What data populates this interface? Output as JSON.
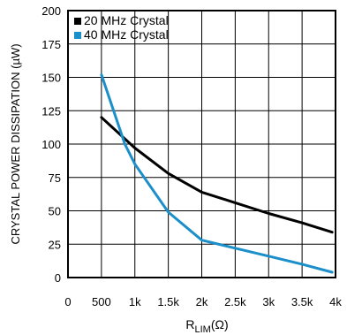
{
  "chart_data": {
    "type": "line",
    "title": "",
    "ylabel": "CRYSTAL POWER DISSIPATION (µW)",
    "xlabel_main": "R",
    "xlabel_sub": "LIM",
    "xlabel_unit": "(Ω)",
    "x_ticks": [
      {
        "value": 0,
        "label": "0"
      },
      {
        "value": 500,
        "label": "500"
      },
      {
        "value": 1000,
        "label": "1k"
      },
      {
        "value": 1500,
        "label": "1.5k"
      },
      {
        "value": 2000,
        "label": "2k"
      },
      {
        "value": 2500,
        "label": "2.5k"
      },
      {
        "value": 3000,
        "label": "3k"
      },
      {
        "value": 3500,
        "label": "3.5k"
      },
      {
        "value": 4000,
        "label": "4k"
      }
    ],
    "y_ticks": [
      {
        "value": 0,
        "label": "0"
      },
      {
        "value": 25,
        "label": "25"
      },
      {
        "value": 50,
        "label": "50"
      },
      {
        "value": 75,
        "label": "75"
      },
      {
        "value": 100,
        "label": "100"
      },
      {
        "value": 125,
        "label": "125"
      },
      {
        "value": 150,
        "label": "150"
      },
      {
        "value": 175,
        "label": "175"
      },
      {
        "value": 200,
        "label": "200"
      }
    ],
    "xlim": [
      0,
      4000
    ],
    "ylim": [
      0,
      200
    ],
    "grid": true,
    "legend_position": "top-left",
    "series": [
      {
        "name": "20 MHz Crystal",
        "color": "#000000",
        "x": [
          500,
          1000,
          1500,
          2000,
          2500,
          3000,
          3500,
          3950
        ],
        "y": [
          120,
          97,
          78,
          64,
          56,
          48,
          41,
          34
        ]
      },
      {
        "name": "40 MHz Crystal",
        "color": "#1a8fc9",
        "x": [
          500,
          850,
          1000,
          1500,
          2000,
          2500,
          3000,
          3500,
          3950
        ],
        "y": [
          152,
          100,
          85,
          49,
          28,
          22,
          16,
          10,
          4
        ]
      }
    ]
  }
}
